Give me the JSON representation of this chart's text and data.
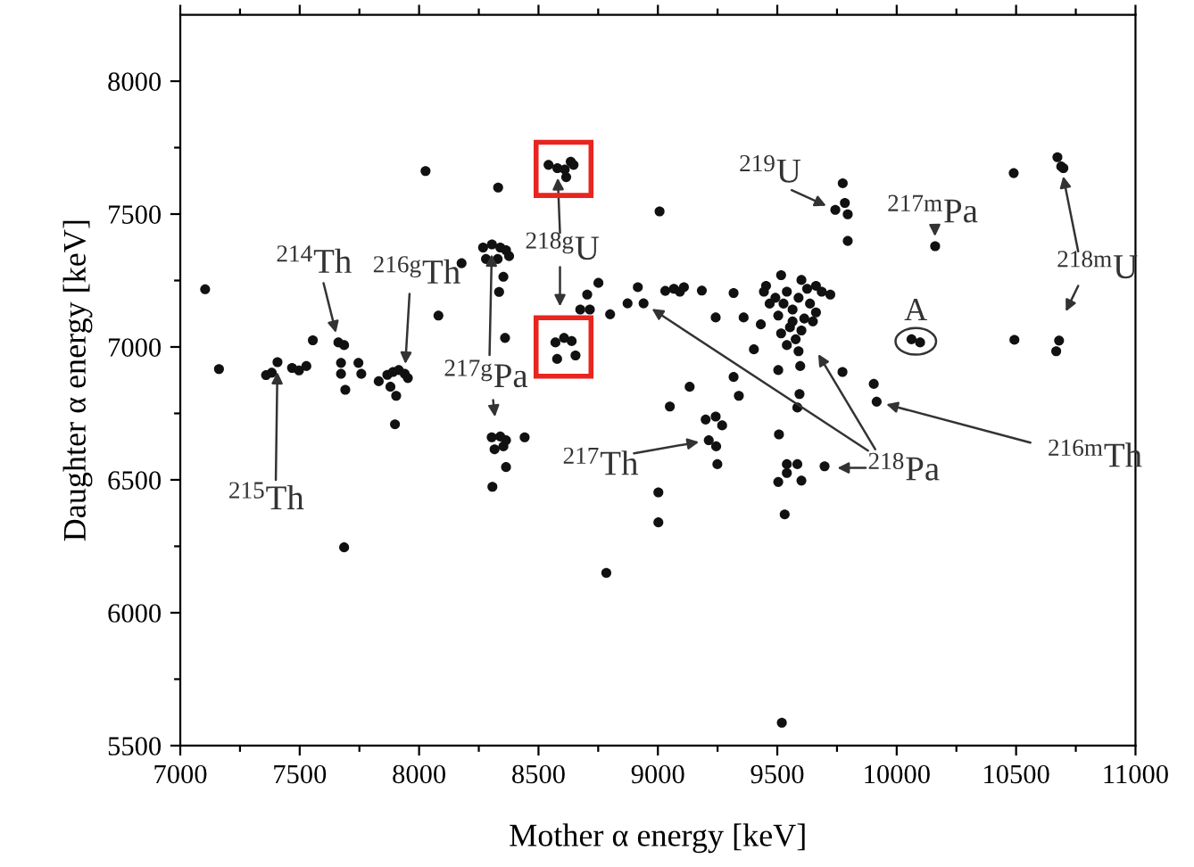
{
  "chart_data": {
    "type": "scatter",
    "xlabel": "Mother α energy [keV]",
    "ylabel": "Daughter α energy [keV]",
    "xlim": [
      7000,
      11000
    ],
    "ylim": [
      5500,
      8250
    ],
    "xticks": [
      7000,
      {
        "value": 7250,
        "label": null
      },
      7500,
      {
        "value": 7750,
        "label": null
      },
      8000,
      {
        "value": 8250,
        "label": null
      },
      8500,
      {
        "value": 8750,
        "label": null
      },
      9000,
      {
        "value": 9250,
        "label": null
      },
      9500,
      {
        "value": 9750,
        "label": null
      },
      10000,
      {
        "value": 10250,
        "label": null
      },
      10500,
      {
        "value": 10750,
        "label": null
      },
      11000
    ],
    "yticks": [
      5500,
      {
        "value": 5750,
        "label": null
      },
      6000,
      {
        "value": 6250,
        "label": null
      },
      6500,
      {
        "value": 6750,
        "label": null
      },
      7000,
      {
        "value": 7250,
        "label": null
      },
      7500,
      {
        "value": 7750,
        "label": null
      },
      8000
    ],
    "grid": false,
    "legend": false,
    "marker": "circle",
    "series": [
      {
        "color": "#111111",
        "x": [
          7104,
          7162,
          7359,
          7383,
          7407,
          7468,
          7497,
          7528,
          7555,
          7662,
          7686,
          7673,
          7673,
          7746,
          7758,
          7691,
          7831,
          7867,
          7891,
          7915,
          7940,
          7880,
          7904,
          7953,
          7899,
          7686,
          8081,
          8178,
          8268,
          8305,
          8340,
          8364,
          8280,
          8329,
          8377,
          8353,
          8335,
          8360,
          8304,
          8340,
          8364,
          8316,
          8353,
          8442,
          8364,
          8307,
          8571,
          8607,
          8639,
          8578,
          8655,
          8704,
          8751,
          8715,
          8675,
          8800,
          8873,
          8916,
          8940,
          9031,
          9050,
          9002,
          9002,
          8784,
          8027,
          8331,
          9007,
          8542,
          8579,
          8610,
          8635,
          8616,
          8647,
          9774,
          9743,
          9783,
          9795,
          9795,
          10161,
          10490,
          10673,
          10689,
          10698,
          9519,
          9067,
          9092,
          9109,
          9184,
          9317,
          9516,
          9601,
          9662,
          9722,
          9444,
          9468,
          9431,
          9540,
          9589,
          9637,
          9564,
          9504,
          9613,
          9553,
          9649,
          9516,
          9577,
          9540,
          9589,
          9492,
          9686,
          9625,
          9453,
          9662,
          9526,
          9601,
          9564,
          9242,
          9359,
          9402,
          9504,
          9596,
          9773,
          9904,
          9916,
          9317,
          9133,
          9339,
          9593,
          9584,
          9200,
          9242,
          9269,
          9213,
          9244,
          9249,
          9507,
          9540,
          9584,
          9540,
          9504,
          9601,
          9698,
          9531,
          10062,
          10098,
          10493,
          10680,
          10668
        ],
        "values": [
          7217,
          6917,
          6894,
          6903,
          6943,
          6921,
          6912,
          6928,
          7025,
          7017,
          7007,
          6940,
          6899,
          6940,
          6899,
          6839,
          6871,
          6895,
          6906,
          6913,
          6899,
          6850,
          6816,
          6883,
          6709,
          6246,
          7118,
          7315,
          7374,
          7386,
          7374,
          7364,
          7331,
          7331,
          7342,
          7264,
          7207,
          7034,
          6660,
          6663,
          6649,
          6615,
          6626,
          6660,
          6548,
          6474,
          7017,
          7034,
          7022,
          6955,
          6968,
          7197,
          7241,
          7141,
          7141,
          7123,
          7164,
          7225,
          7164,
          7211,
          6776,
          6453,
          6340,
          6150,
          7662,
          7600,
          7510,
          7685,
          7673,
          7668,
          7697,
          7639,
          7685,
          7616,
          7516,
          7542,
          7499,
          7399,
          7379,
          7654,
          7714,
          7679,
          7673,
          5586,
          7219,
          7208,
          7225,
          7212,
          7203,
          7270,
          7252,
          7230,
          7197,
          7208,
          7163,
          7085,
          7208,
          7185,
          7163,
          7141,
          7118,
          7107,
          7074,
          7096,
          7051,
          7029,
          7007,
          6984,
          7185,
          7208,
          7219,
          7230,
          7130,
          7163,
          7062,
          7096,
          7111,
          7111,
          6991,
          6913,
          6928,
          6906,
          6861,
          6794,
          6887,
          6850,
          6816,
          6823,
          6772,
          6727,
          6738,
          6705,
          6649,
          6626,
          6559,
          6671,
          6559,
          6559,
          6526,
          6492,
          6497,
          6551,
          6370,
          7029,
          7017,
          7027,
          7024,
          6984
        ]
      }
    ],
    "annotations": [
      {
        "text": "$^{214}$Th",
        "x": 7662,
        "y": 7017
      },
      {
        "text": "$^{216g}$Th",
        "x": 7940,
        "y": 6899
      },
      {
        "text": "$^{215}$Th",
        "x": 7407,
        "y": 6943
      },
      {
        "text": "$^{217g}$Pa",
        "x": 8305,
        "y": 7386
      },
      {
        "text": "$^{218g}$U",
        "x": 8579,
        "y": 7673
      },
      {
        "text": "$^{219}$U",
        "x": 9743,
        "y": 7516
      },
      {
        "text": "$^{217m}$Pa",
        "x": 10161,
        "y": 7379
      },
      {
        "text": "$^{218m}$U",
        "x": 10689,
        "y": 7679
      },
      {
        "text": "$^{218}$Pa",
        "x": 8940,
        "y": 7164
      },
      {
        "text": "$^{216m}$Th",
        "x": 9916,
        "y": 6794
      },
      {
        "text": "$^{217}$Th",
        "x": 9213,
        "y": 6649
      },
      {
        "text": "A",
        "x": 10062,
        "y": 7029
      }
    ]
  }
}
